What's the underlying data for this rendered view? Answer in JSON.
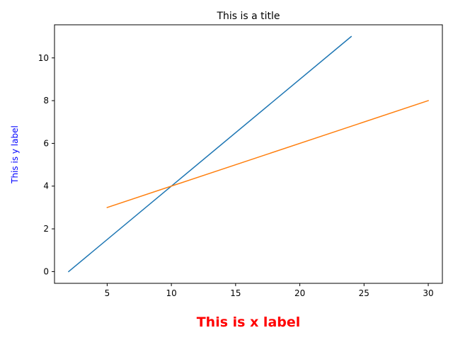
{
  "chart_data": {
    "type": "line",
    "title": "This is a title",
    "xlabel": "This is x label",
    "ylabel": "This is y label",
    "xlim": [
      0.9,
      31.1
    ],
    "ylim": [
      -0.55,
      11.55
    ],
    "xticks": [
      5,
      10,
      15,
      20,
      25,
      30
    ],
    "yticks": [
      0,
      2,
      4,
      6,
      8,
      10
    ],
    "grid": false,
    "series": [
      {
        "color": "#1f77b4",
        "x": [
          2,
          24
        ],
        "y": [
          0,
          11
        ]
      },
      {
        "color": "#ff7f0e",
        "x": [
          5,
          30
        ],
        "y": [
          3,
          8
        ]
      }
    ],
    "colors": {
      "xlabel": "#ff0000",
      "ylabel": "#0000ff",
      "axes": "#000000",
      "title": "#000000"
    }
  }
}
